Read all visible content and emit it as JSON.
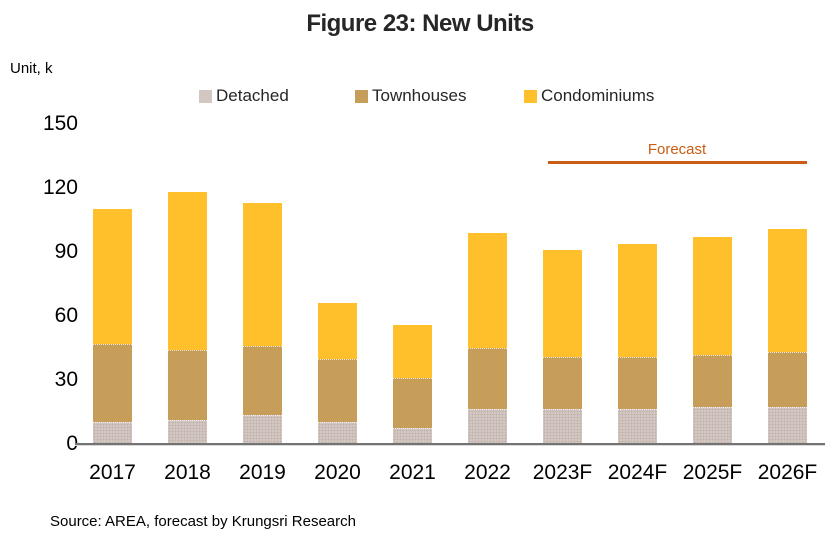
{
  "header": {
    "title": "Figure 23: New Units"
  },
  "axis": {
    "unit_label": "Unit, k"
  },
  "legend": [
    {
      "label": "Detached",
      "key": "detached"
    },
    {
      "label": "Townhouses",
      "key": "townhouses"
    },
    {
      "label": "Condominiums",
      "key": "condominiums"
    }
  ],
  "forecast": {
    "label": "Forecast"
  },
  "footer": {
    "source": "Source: AREA, forecast by Krungsri Research"
  },
  "colors": {
    "detached": "#D3C7C2",
    "townhouses": "#C79E59",
    "condominiums": "#FFC02B",
    "forecast": "#CA5D15",
    "axis": "#737373",
    "title": "#262626"
  },
  "chart_data": {
    "type": "bar",
    "stacked": true,
    "title": "Figure 23: New Units",
    "ylabel": "Unit, k",
    "categories": [
      "2017",
      "2018",
      "2019",
      "2020",
      "2021",
      "2022",
      "2023F",
      "2024F",
      "2025F",
      "2026F"
    ],
    "series": [
      {
        "name": "Detached",
        "values": [
          10,
          11,
          13,
          10,
          7,
          16,
          16,
          16,
          17,
          17
        ]
      },
      {
        "name": "Townhouses",
        "values": [
          36,
          32,
          32,
          29,
          23,
          28,
          24,
          24,
          24,
          25
        ]
      },
      {
        "name": "Condominiums",
        "values": [
          63,
          74,
          67,
          26,
          25,
          54,
          50,
          53,
          55,
          58
        ]
      }
    ],
    "totals": [
      109,
      117,
      112,
      65,
      55,
      98,
      90,
      93,
      96,
      100
    ],
    "ylim": [
      0,
      150
    ],
    "yticks": [
      0,
      30,
      60,
      90,
      120,
      150
    ],
    "grid": false,
    "legend_position": "top",
    "annotations": {
      "forecast_label": "Forecast",
      "forecast_span": [
        "2023F",
        "2026F"
      ]
    }
  }
}
